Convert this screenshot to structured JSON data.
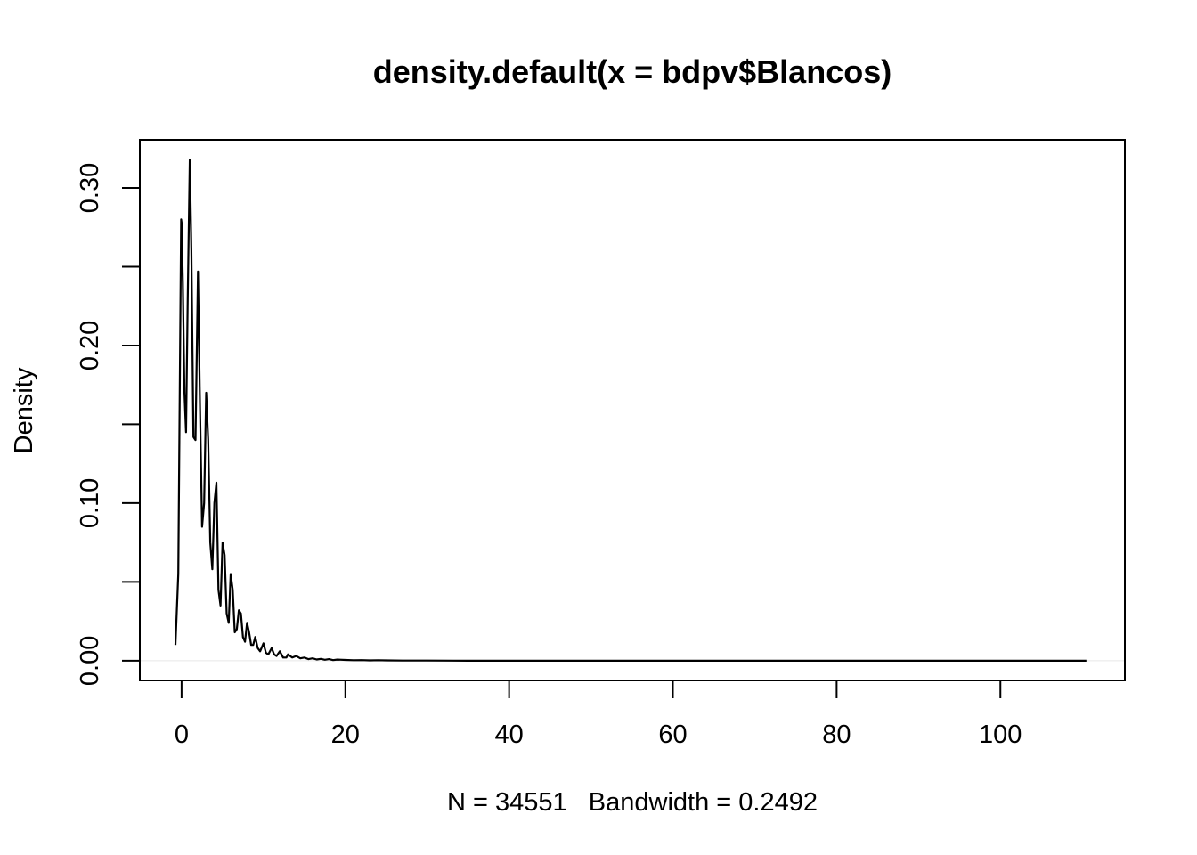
{
  "chart_data": {
    "type": "line",
    "title": "density.default(x = bdpv$Blancos)",
    "xlabel": "N = 34551   Bandwidth = 0.2492",
    "ylabel": "Density",
    "xlim": [
      -5.1,
      115.2
    ],
    "ylim": [
      -0.0125,
      0.3305
    ],
    "x_ticks": [
      0,
      20,
      40,
      60,
      80,
      100
    ],
    "x_tick_labels": [
      "0",
      "20",
      "40",
      "60",
      "80",
      "100"
    ],
    "y_ticks": [
      0.0,
      0.05,
      0.1,
      0.15,
      0.2,
      0.25,
      0.3
    ],
    "y_tick_labels": [
      "0.00",
      "",
      "0.10",
      "",
      "0.20",
      "",
      "0.30"
    ],
    "grid": false,
    "legend": "none",
    "color": "#000000",
    "series": [
      {
        "x": [
          -0.75,
          -0.4,
          -0.05,
          0.0,
          0.15,
          0.35,
          0.55,
          0.75,
          1.0,
          1.2,
          1.45,
          1.7,
          2.0,
          2.25,
          2.5,
          2.75,
          3.0,
          3.25,
          3.5,
          3.75,
          4.0,
          4.25,
          4.5,
          4.75,
          5.0,
          5.25,
          5.5,
          5.75,
          6.0,
          6.25,
          6.5,
          6.75,
          7.0,
          7.25,
          7.5,
          7.75,
          8.0,
          8.25,
          8.5,
          8.75,
          9.0,
          9.3,
          9.6,
          10.0,
          10.3,
          10.6,
          11.0,
          11.3,
          11.6,
          12.0,
          12.4,
          12.8,
          13.0,
          13.5,
          14.0,
          14.5,
          15.0,
          15.5,
          16.0,
          16.5,
          17.0,
          17.5,
          18.0,
          18.5,
          19.0,
          20.0,
          21.0,
          22.0,
          23.0,
          24.0,
          25.0,
          27.0,
          30.0,
          35.0,
          40.0,
          50.0,
          60.0,
          70.0,
          80.0,
          90.0,
          100.0,
          110.5
        ],
        "y": [
          0.01,
          0.055,
          0.28,
          0.278,
          0.24,
          0.17,
          0.145,
          0.23,
          0.318,
          0.26,
          0.142,
          0.14,
          0.247,
          0.16,
          0.085,
          0.1,
          0.17,
          0.14,
          0.075,
          0.058,
          0.1,
          0.113,
          0.045,
          0.035,
          0.075,
          0.067,
          0.03,
          0.024,
          0.055,
          0.045,
          0.018,
          0.02,
          0.032,
          0.03,
          0.015,
          0.012,
          0.024,
          0.018,
          0.01,
          0.01,
          0.015,
          0.008,
          0.006,
          0.011,
          0.005,
          0.004,
          0.008,
          0.004,
          0.003,
          0.006,
          0.002,
          0.002,
          0.004,
          0.002,
          0.003,
          0.0015,
          0.002,
          0.001,
          0.0015,
          0.0008,
          0.0012,
          0.0006,
          0.001,
          0.0004,
          0.0007,
          0.0005,
          0.0003,
          0.0004,
          0.0002,
          0.0003,
          0.0002,
          0.0001,
          0.0001,
          0.0,
          0.0,
          0.0,
          0.0,
          0.0,
          0.0,
          0.0,
          0.0,
          0.0
        ]
      }
    ]
  }
}
